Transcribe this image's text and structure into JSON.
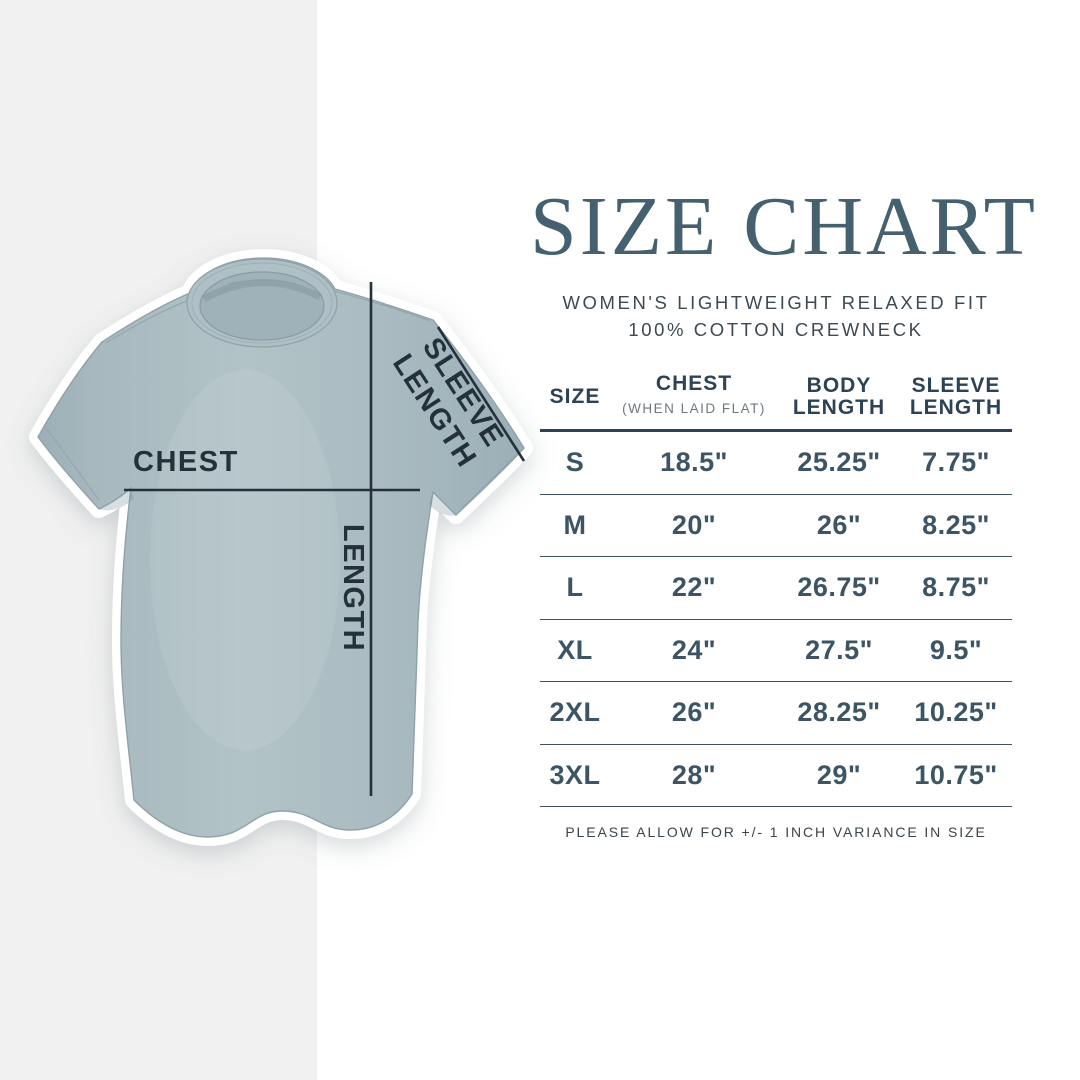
{
  "title": "SIZE CHART",
  "subtitle_line1": "WOMEN'S LIGHTWEIGHT RELAXED FIT",
  "subtitle_line2": "100% COTTON CREWNECK",
  "shirt": {
    "annotations": {
      "chest": "CHEST",
      "length": "LENGTH",
      "sleeve_line1": "SLEEVE",
      "sleeve_line2": "LENGTH"
    }
  },
  "table": {
    "headers": {
      "size": "SIZE",
      "chest": "CHEST",
      "chest_note": "(WHEN LAID FLAT)",
      "body": "BODY LENGTH",
      "sleeve": "SLEEVE LENGTH"
    },
    "rows": [
      {
        "size": "S",
        "chest": "18.5\"",
        "body": "25.25\"",
        "sleeve": "7.75\""
      },
      {
        "size": "M",
        "chest": "20\"",
        "body": "26\"",
        "sleeve": "8.25\""
      },
      {
        "size": "L",
        "chest": "22\"",
        "body": "26.75\"",
        "sleeve": "8.75\""
      },
      {
        "size": "XL",
        "chest": "24\"",
        "body": "27.5\"",
        "sleeve": "9.5\""
      },
      {
        "size": "2XL",
        "chest": "26\"",
        "body": "28.25\"",
        "sleeve": "10.25\""
      },
      {
        "size": "3XL",
        "chest": "28\"",
        "body": "29\"",
        "sleeve": "10.75\""
      }
    ]
  },
  "footer": "PLEASE ALLOW FOR +/- 1 INCH VARIANCE IN SIZE",
  "colors": {
    "page_bg": "#ffffff",
    "panel_gray": "#f1f1f1",
    "title": "#45606f",
    "subtitle_text": "#3e4a52",
    "header_text": "#2d4355",
    "subnote_text": "#6e787d",
    "table_text": "#3d5464",
    "table_line": "#3c5363",
    "footer_text": "#3a444b",
    "annotation": "#25313a",
    "shirt_base": "#a9bbc0"
  },
  "chart_data": {
    "type": "table",
    "title": "SIZE CHART",
    "subtitle": "WOMEN'S LIGHTWEIGHT RELAXED FIT — 100% COTTON CREWNECK",
    "columns": [
      "SIZE",
      "CHEST (WHEN LAID FLAT)",
      "BODY LENGTH",
      "SLEEVE LENGTH"
    ],
    "rows": [
      [
        "S",
        "18.5\"",
        "25.25\"",
        "7.75\""
      ],
      [
        "M",
        "20\"",
        "26\"",
        "8.25\""
      ],
      [
        "L",
        "22\"",
        "26.75\"",
        "8.75\""
      ],
      [
        "XL",
        "24\"",
        "27.5\"",
        "9.5\""
      ],
      [
        "2XL",
        "26\"",
        "28.25\"",
        "10.25\""
      ],
      [
        "3XL",
        "28\"",
        "29\"",
        "10.75\""
      ]
    ],
    "footnote": "PLEASE ALLOW FOR +/- 1 INCH VARIANCE IN SIZE",
    "units": "inches"
  }
}
